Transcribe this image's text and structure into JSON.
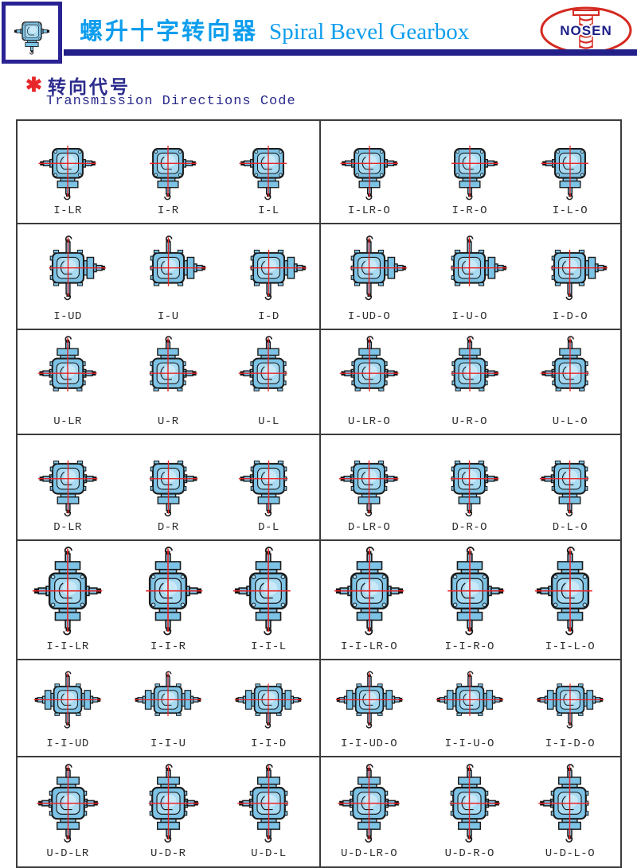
{
  "header": {
    "title_cn": "螺升十字转向器",
    "title_en": "Spiral Bevel Gearbox",
    "brand": "NOSEN"
  },
  "section": {
    "marker": "✱",
    "heading_cn": "转向代号",
    "heading_en": "Transmission Directions Code"
  },
  "colors": {
    "accent_blue": "#0d9ded",
    "navy_bar": "#232189",
    "logo_border": "#2a2293",
    "heading_navy": "#2b2b8d",
    "brand_red": "#d42a20",
    "brand_text": "#1c2087",
    "label": "#2f2f2f",
    "table_border": "#3c3c3c",
    "diagram": {
      "body": "#7cc3e6",
      "light": "#a8daf1",
      "lighter": "#c9e9f8",
      "outline": "#1b1b1b",
      "crosshair": "#e8262a"
    }
  },
  "table": {
    "rows": [
      {
        "body": "bolt",
        "flanges": "d",
        "screws": "d",
        "cells": [
          {
            "label": "I-LR",
            "shafts": "lr"
          },
          {
            "label": "I-R",
            "shafts": "r"
          },
          {
            "label": "I-L",
            "shafts": "l"
          },
          {
            "label": "I-LR-O",
            "shafts": "lr"
          },
          {
            "label": "I-R-O",
            "shafts": "r"
          },
          {
            "label": "I-L-O",
            "shafts": "l"
          }
        ]
      },
      {
        "body": "rib",
        "flanges": "r",
        "shafts": "r",
        "cells": [
          {
            "label": "I-UD",
            "screws": "ud"
          },
          {
            "label": "I-U",
            "screws": "u"
          },
          {
            "label": "I-D",
            "screws": "d"
          },
          {
            "label": "I-UD-O",
            "screws": "ud"
          },
          {
            "label": "I-U-O",
            "screws": "u"
          },
          {
            "label": "I-D-O",
            "screws": "d"
          }
        ]
      },
      {
        "body": "rib",
        "flanges": "u",
        "screws": "u",
        "cells": [
          {
            "label": "U-LR",
            "shafts": "lr"
          },
          {
            "label": "U-R",
            "shafts": "r"
          },
          {
            "label": "U-L",
            "shafts": "l"
          },
          {
            "label": "U-LR-O",
            "shafts": "lr"
          },
          {
            "label": "U-R-O",
            "shafts": "r"
          },
          {
            "label": "U-L-O",
            "shafts": "l"
          }
        ]
      },
      {
        "body": "rib",
        "flanges": "d",
        "screws": "d",
        "cells": [
          {
            "label": "D-LR",
            "shafts": "lr"
          },
          {
            "label": "D-R",
            "shafts": "r"
          },
          {
            "label": "D-L",
            "shafts": "l"
          },
          {
            "label": "D-LR-O",
            "shafts": "lr"
          },
          {
            "label": "D-R-O",
            "shafts": "r"
          },
          {
            "label": "D-L-O",
            "shafts": "l"
          }
        ]
      },
      {
        "body": "bolt",
        "flanges": "ud",
        "screws": "ud",
        "cells": [
          {
            "label": "I-I-LR",
            "shafts": "lr"
          },
          {
            "label": "I-I-R",
            "shafts": "r"
          },
          {
            "label": "I-I-L",
            "shafts": "l"
          },
          {
            "label": "I-I-LR-O",
            "shafts": "lr"
          },
          {
            "label": "I-I-R-O",
            "shafts": "r"
          },
          {
            "label": "I-I-L-O",
            "shafts": "l"
          }
        ]
      },
      {
        "body": "rib",
        "flanges": "lr",
        "shafts": "lr",
        "cells": [
          {
            "label": "I-I-UD",
            "screws": "ud"
          },
          {
            "label": "I-I-U",
            "screws": "u"
          },
          {
            "label": "I-I-D",
            "screws": "d"
          },
          {
            "label": "I-I-UD-O",
            "screws": "ud"
          },
          {
            "label": "I-I-U-O",
            "screws": "u"
          },
          {
            "label": "I-I-D-O",
            "screws": "d"
          }
        ]
      },
      {
        "body": "rib",
        "flanges": "ud",
        "screws": "ud",
        "cells": [
          {
            "label": "U-D-LR",
            "shafts": "lr"
          },
          {
            "label": "U-D-R",
            "shafts": "r"
          },
          {
            "label": "U-D-L",
            "shafts": "l"
          },
          {
            "label": "U-D-LR-O",
            "shafts": "lr"
          },
          {
            "label": "U-D-R-O",
            "shafts": "r"
          },
          {
            "label": "U-D-L-O",
            "shafts": "l"
          }
        ]
      }
    ]
  }
}
